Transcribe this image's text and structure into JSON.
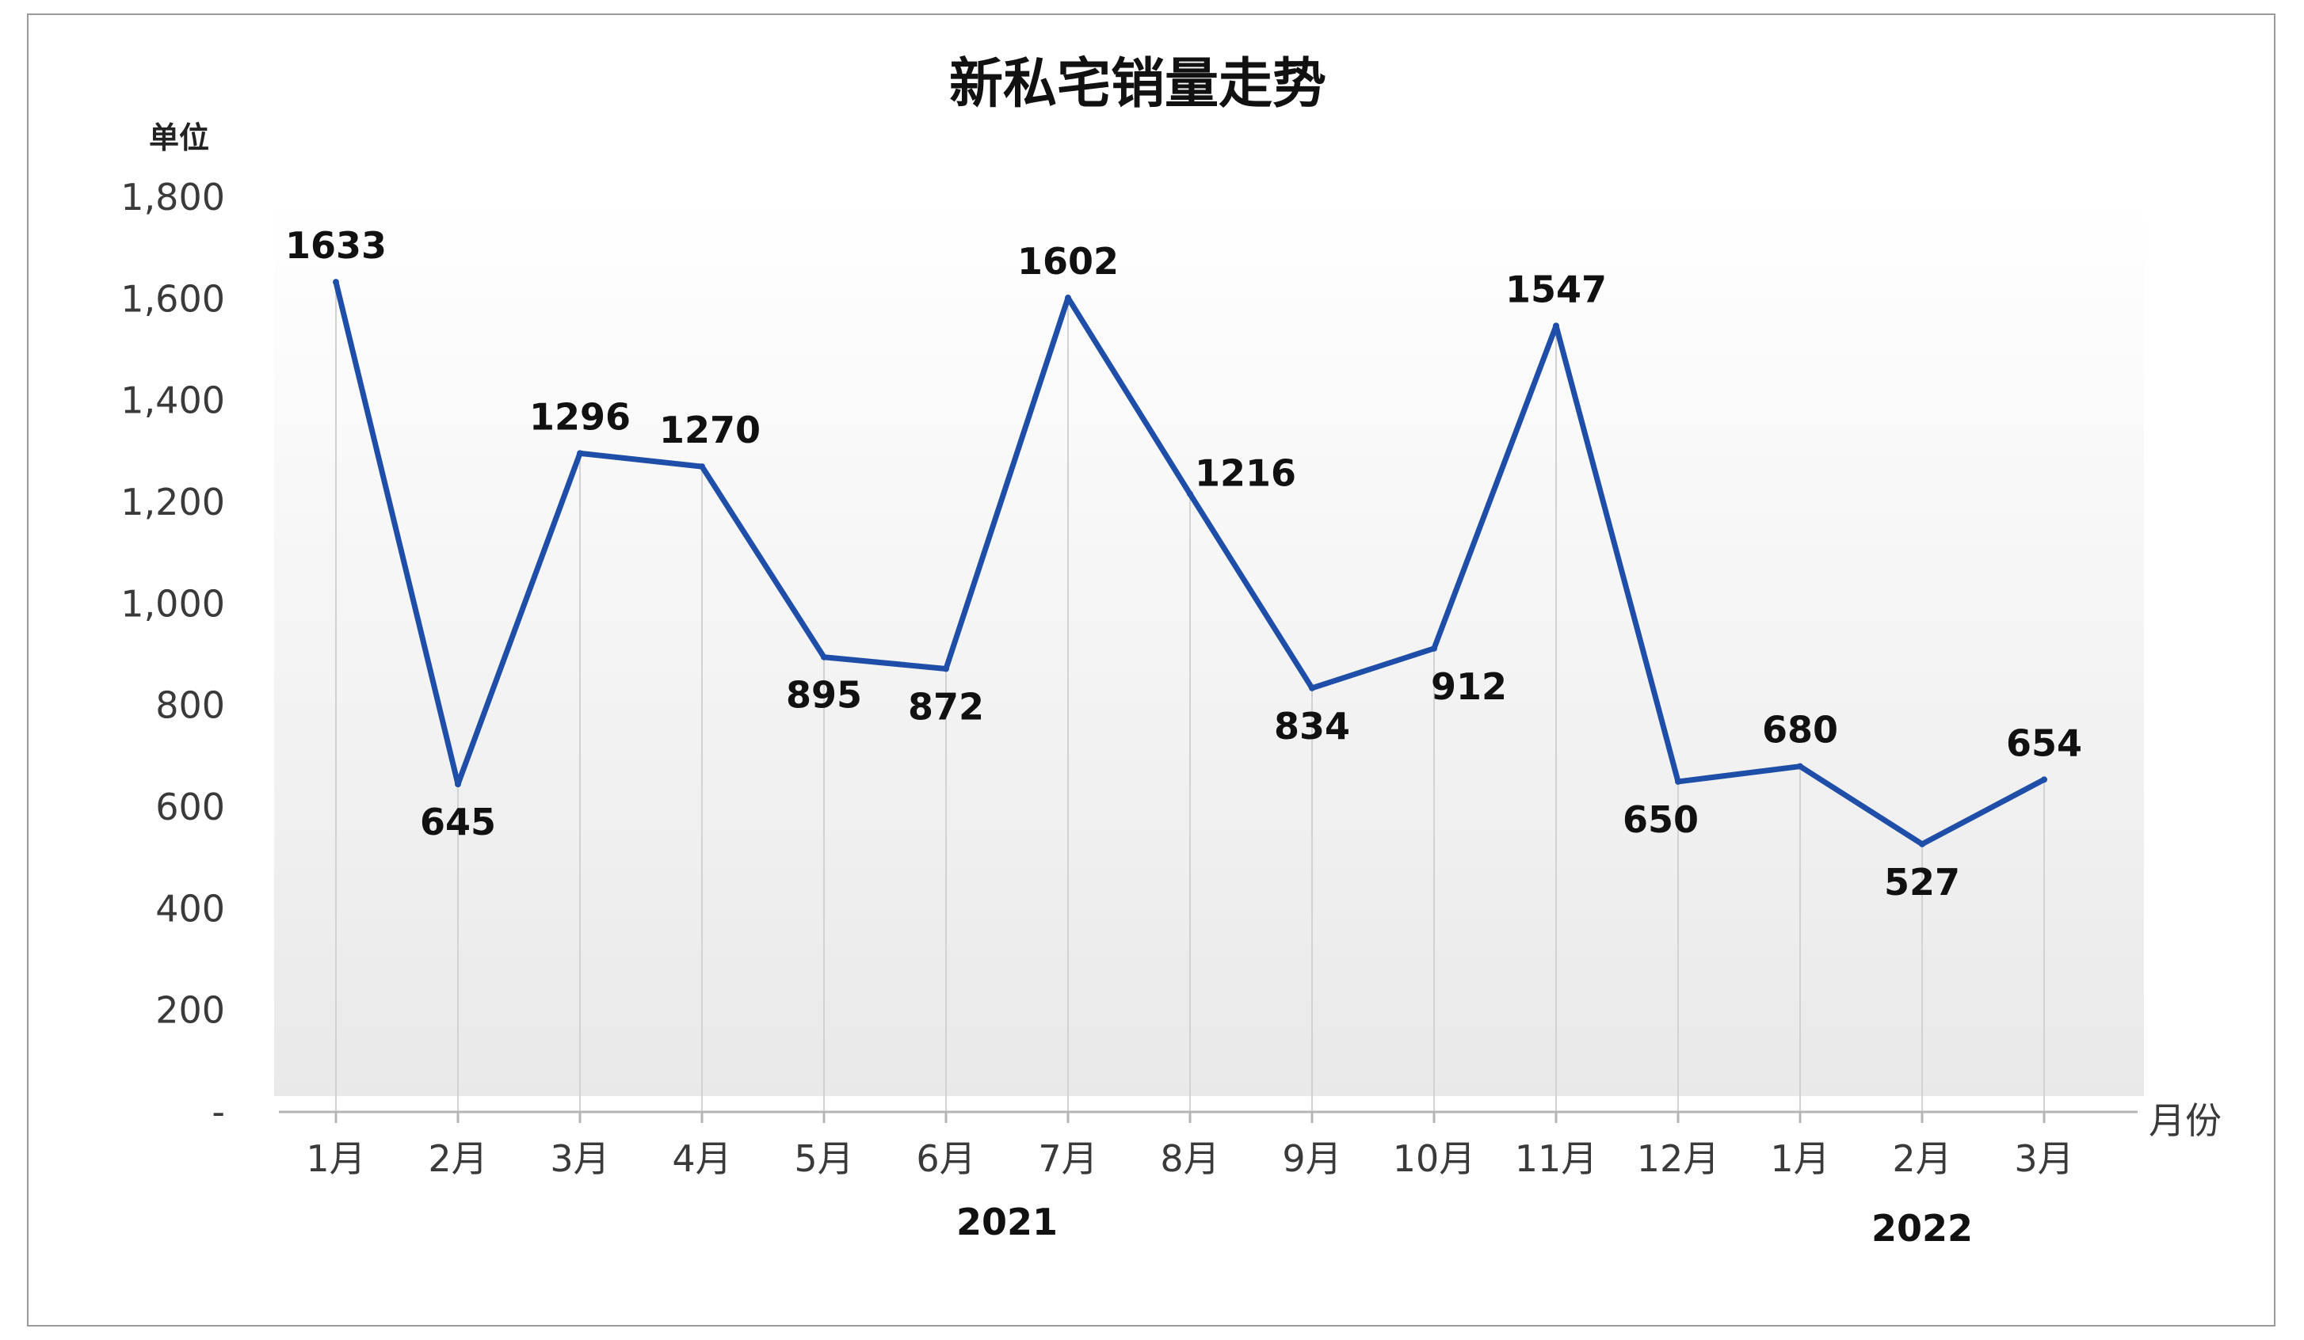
{
  "chart_data": {
    "type": "line",
    "title": "新私宅销量走势",
    "ylabel": "单位",
    "xlabel": "月份",
    "categories": [
      "1月",
      "2月",
      "3月",
      "4月",
      "5月",
      "6月",
      "7月",
      "8月",
      "9月",
      "10月",
      "11月",
      "12月",
      "1月",
      "2月",
      "3月"
    ],
    "year_groups": [
      {
        "label": "2021",
        "from": 0,
        "to": 11
      },
      {
        "label": "2022",
        "from": 12,
        "to": 14
      }
    ],
    "series": [
      {
        "values": [
          1633,
          645,
          1296,
          1270,
          895,
          872,
          1602,
          1216,
          834,
          912,
          1547,
          650,
          680,
          527,
          654
        ]
      }
    ],
    "data_labels": [
      "1633",
      "645",
      "1296",
      "1270",
      "895",
      "872",
      "1602",
      "1216",
      "834",
      "912",
      "1547",
      "650",
      "680",
      "527",
      "654"
    ],
    "yticks": [
      0,
      200,
      400,
      600,
      800,
      1000,
      1200,
      1400,
      1600,
      1800
    ],
    "ytick_labels": [
      "-",
      "200",
      "400",
      "600",
      "800",
      "1,000",
      "1,200",
      "1,400",
      "1,600",
      "1,800"
    ],
    "ylim": [
      0,
      1800
    ],
    "grid": "vertical drop lines at categories",
    "legend": "none",
    "colors": {
      "line": "#1f4ea8",
      "axis": "#b5b5b5",
      "dropline": "#d2d2d2"
    }
  }
}
